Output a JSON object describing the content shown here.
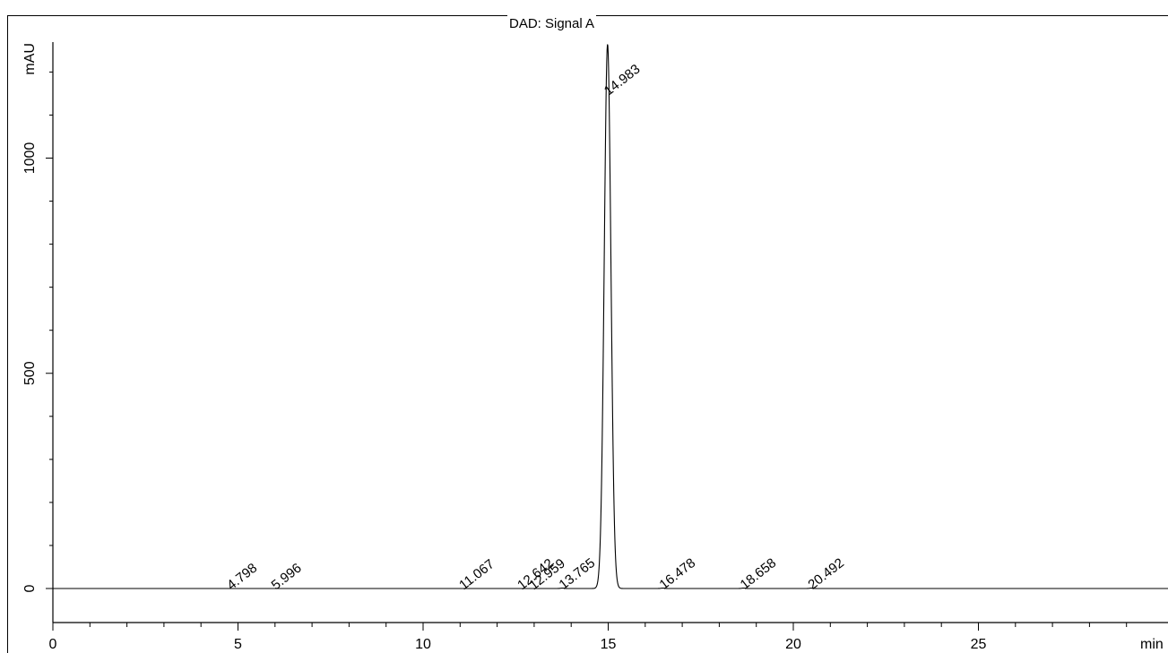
{
  "chart_data": {
    "type": "line",
    "title": "DAD: Signal A",
    "xlabel": "min",
    "ylabel": "mAU",
    "xlim": [
      0,
      29.8
    ],
    "ylim": [
      -80,
      1265
    ],
    "x_ticks": [
      0,
      5,
      10,
      15,
      20,
      25
    ],
    "y_ticks": [
      0,
      500,
      1000
    ],
    "grid": false,
    "baseline": 0,
    "peaks": [
      {
        "rt": 4.798,
        "label": "4.798",
        "height": 0
      },
      {
        "rt": 5.996,
        "label": "5.996",
        "height": 0
      },
      {
        "rt": 11.067,
        "label": "11.067",
        "height": 0
      },
      {
        "rt": 12.642,
        "label": "12.642",
        "height": 0
      },
      {
        "rt": 12.959,
        "label": "12.959",
        "height": 0
      },
      {
        "rt": 13.765,
        "label": "13.765",
        "height": 1
      },
      {
        "rt": 14.983,
        "label": "14.983",
        "height": 1265
      },
      {
        "rt": 16.478,
        "label": "16.478",
        "height": 1
      },
      {
        "rt": 18.658,
        "label": "18.658",
        "height": 1
      },
      {
        "rt": 20.492,
        "label": "20.492",
        "height": 1
      }
    ]
  }
}
